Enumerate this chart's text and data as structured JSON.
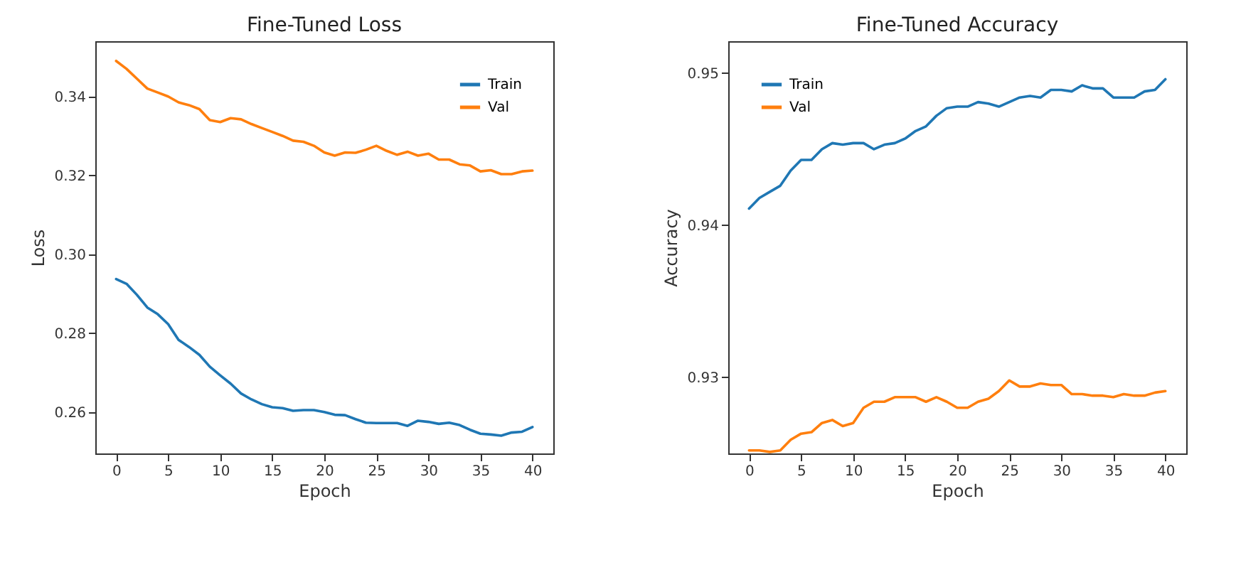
{
  "chart_data": [
    {
      "type": "line",
      "title": "Fine-Tuned Loss",
      "xlabel": "Epoch",
      "ylabel": "Loss",
      "x": [
        0,
        1,
        2,
        3,
        4,
        5,
        6,
        7,
        8,
        9,
        10,
        11,
        12,
        13,
        14,
        15,
        16,
        17,
        18,
        19,
        20,
        21,
        22,
        23,
        24,
        25,
        26,
        27,
        28,
        29,
        30,
        31,
        32,
        33,
        34,
        35,
        36,
        37,
        38,
        39,
        40
      ],
      "series": [
        {
          "name": "Train",
          "color": "#1f77b4",
          "values": [
            0.2937,
            0.2925,
            0.2897,
            0.2865,
            0.2848,
            0.2823,
            0.2783,
            0.2765,
            0.2745,
            0.2715,
            0.2693,
            0.2672,
            0.2647,
            0.2632,
            0.262,
            0.2612,
            0.261,
            0.2603,
            0.2605,
            0.2605,
            0.26,
            0.2593,
            0.2592,
            0.2582,
            0.2573,
            0.2572,
            0.2572,
            0.2572,
            0.2565,
            0.2578,
            0.2575,
            0.257,
            0.2573,
            0.2567,
            0.2555,
            0.2545,
            0.2543,
            0.254,
            0.2548,
            0.255,
            0.2562
          ]
        },
        {
          "name": "Val",
          "color": "#ff7f0e",
          "values": [
            0.349,
            0.347,
            0.3445,
            0.342,
            0.341,
            0.34,
            0.3385,
            0.3378,
            0.3368,
            0.334,
            0.3335,
            0.3345,
            0.3342,
            0.333,
            0.332,
            0.331,
            0.33,
            0.3288,
            0.3285,
            0.3275,
            0.3258,
            0.325,
            0.3258,
            0.3257,
            0.3265,
            0.3275,
            0.3262,
            0.3252,
            0.326,
            0.325,
            0.3255,
            0.324,
            0.324,
            0.3228,
            0.3225,
            0.321,
            0.3213,
            0.3203,
            0.3203,
            0.321,
            0.3212
          ]
        }
      ],
      "xlim": [
        -2,
        42
      ],
      "xticks": [
        0,
        5,
        10,
        15,
        20,
        25,
        30,
        35,
        40
      ],
      "ylim": [
        0.2495,
        0.354
      ],
      "yticks": [
        0.26,
        0.28,
        {
          "value": 0.3,
          "label": "0.30"
        },
        0.32,
        0.34
      ],
      "legend": "top right",
      "grid": false
    },
    {
      "type": "line",
      "title": "Fine-Tuned Accuracy",
      "xlabel": "Epoch",
      "ylabel": "Accuracy",
      "x": [
        0,
        1,
        2,
        3,
        4,
        5,
        6,
        7,
        8,
        9,
        10,
        11,
        12,
        13,
        14,
        15,
        16,
        17,
        18,
        19,
        20,
        21,
        22,
        23,
        24,
        25,
        26,
        27,
        28,
        29,
        30,
        31,
        32,
        33,
        34,
        35,
        36,
        37,
        38,
        39,
        40
      ],
      "series": [
        {
          "name": "Train",
          "color": "#1f77b4",
          "values": [
            0.9411,
            0.9418,
            0.9422,
            0.9426,
            0.9436,
            0.9443,
            0.9443,
            0.945,
            0.9454,
            0.9453,
            0.9454,
            0.9454,
            0.945,
            0.9453,
            0.9454,
            0.9457,
            0.9462,
            0.9465,
            0.9472,
            0.9477,
            0.9478,
            0.9478,
            0.9481,
            0.948,
            0.9478,
            0.9481,
            0.9484,
            0.9485,
            0.9484,
            0.9489,
            0.9489,
            0.9488,
            0.9492,
            0.949,
            0.949,
            0.9484,
            0.9484,
            0.9484,
            0.9488,
            0.9489,
            0.9496
          ]
        },
        {
          "name": "Val",
          "color": "#ff7f0e",
          "values": [
            0.9252,
            0.9252,
            0.9251,
            0.9252,
            0.9259,
            0.9263,
            0.9264,
            0.927,
            0.9272,
            0.9268,
            0.927,
            0.928,
            0.9284,
            0.9284,
            0.9287,
            0.9287,
            0.9287,
            0.9284,
            0.9287,
            0.9284,
            0.928,
            0.928,
            0.9284,
            0.9286,
            0.9291,
            0.9298,
            0.9294,
            0.9294,
            0.9296,
            0.9295,
            0.9295,
            0.9289,
            0.9289,
            0.9288,
            0.9288,
            0.9287,
            0.9289,
            0.9288,
            0.9288,
            0.929,
            0.9291
          ]
        }
      ],
      "xlim": [
        -2,
        42
      ],
      "xticks": [
        0,
        5,
        10,
        15,
        20,
        25,
        30,
        35,
        40
      ],
      "ylim": [
        0.925,
        0.9521
      ],
      "yticks": [
        0.93,
        0.94,
        0.95
      ],
      "legend": "top left",
      "grid": false
    }
  ]
}
